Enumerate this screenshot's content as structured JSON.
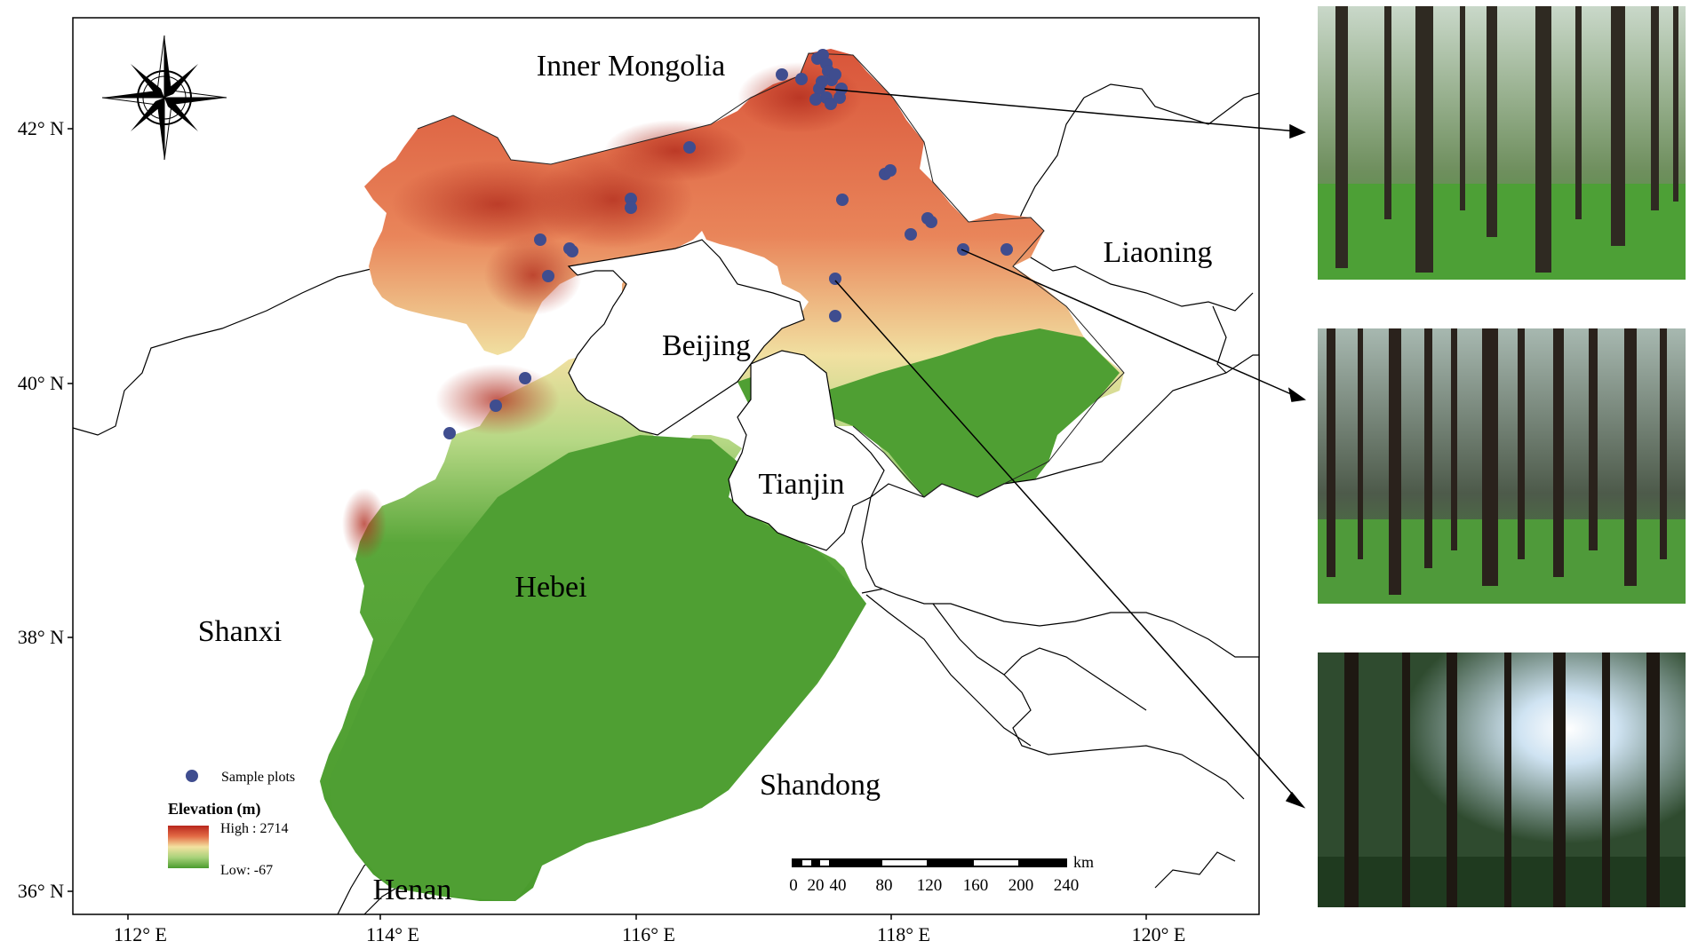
{
  "map": {
    "latitude_labels": [
      "42° N",
      "40° N",
      "38° N",
      "36° N"
    ],
    "longitude_labels": [
      "112° E",
      "114° E",
      "116° E",
      "118° E",
      "120° E"
    ],
    "region_labels": {
      "inner_mongolia": "Inner Mongolia",
      "liaoning": "Liaoning",
      "beijing": "Beijing",
      "tianjin": "Tianjin",
      "hebei": "Hebei",
      "shanxi": "Shanxi",
      "shandong": "Shandong",
      "henan": "Henan"
    },
    "legend": {
      "sample_plots_label": "Sample plots",
      "elevation_title": "Elevation (m)",
      "high_label": "High : 2714",
      "low_label": "Low: -67",
      "high_value_m": 2714,
      "low_value_m": -67
    },
    "scale_bar": {
      "unit": "km",
      "ticks": [
        "0",
        "20",
        "40",
        "80",
        "120",
        "160",
        "200",
        "240"
      ]
    },
    "north_arrow_icon": "compass-rose-icon",
    "colors": {
      "elevation_high": "#c0392b",
      "elevation_mid": "#f1e3a0",
      "elevation_low": "#4a9c2e",
      "sample_plot": "#3f4d8f",
      "boundary": "#000000"
    }
  },
  "photos": [
    {
      "icon": "forest-photo-icon"
    },
    {
      "icon": "forest-photo-icon"
    },
    {
      "icon": "forest-photo-icon"
    }
  ]
}
